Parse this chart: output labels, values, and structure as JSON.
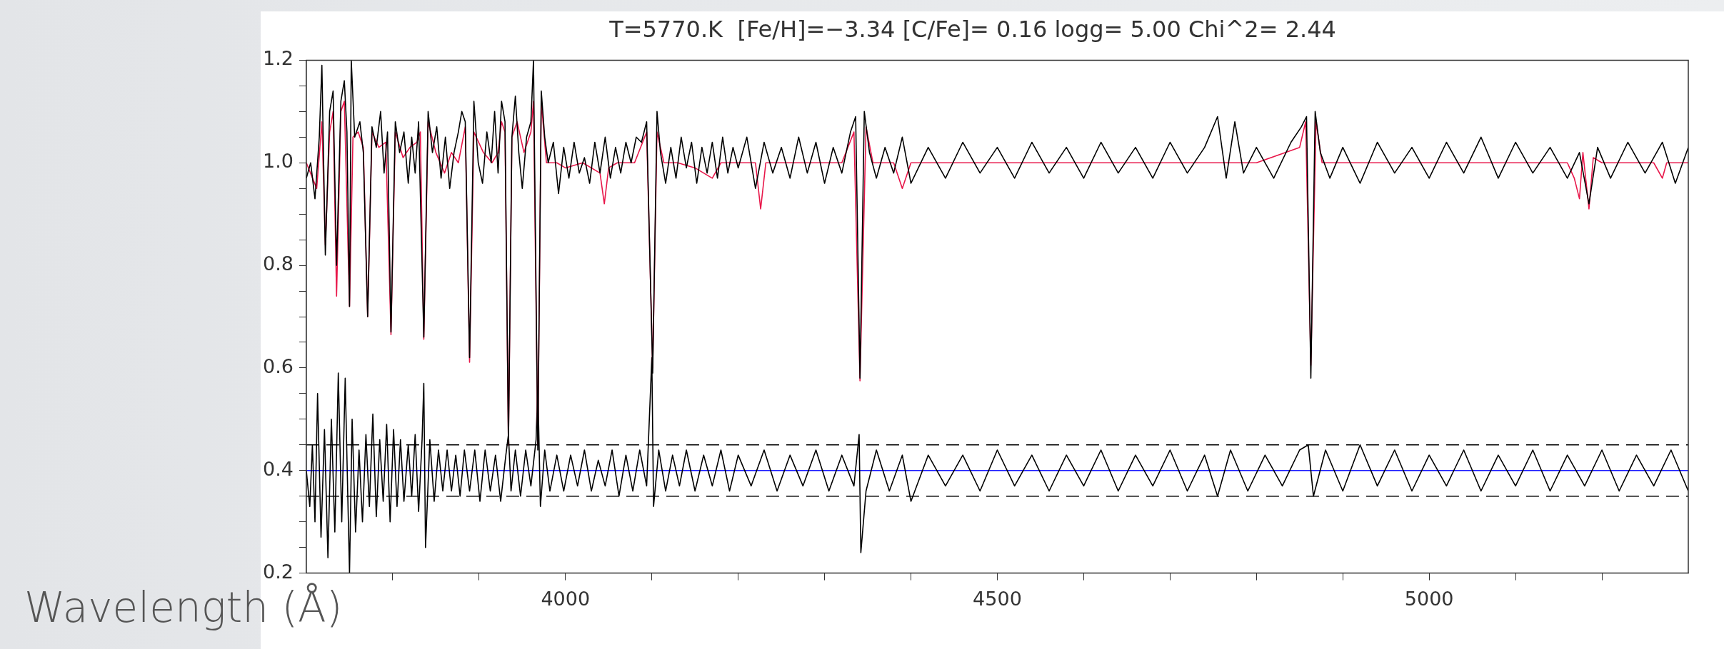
{
  "chart_data": {
    "type": "line",
    "title": "T=5770.K  [Fe/H]=−3.34 [C/Fe]= 0.16 logg= 5.00 Chi^2= 2.44",
    "xlabel": "Wavelength (Å)",
    "xlim": [
      3700,
      5300
    ],
    "xticks": [
      {
        "value": 3800,
        "label": null
      },
      {
        "value": 3900,
        "label": null
      },
      4000,
      {
        "value": 4100,
        "label": null
      },
      {
        "value": 4200,
        "label": null
      },
      {
        "value": 4300,
        "label": null
      },
      {
        "value": 4400,
        "label": null
      },
      4500,
      {
        "value": 4600,
        "label": null
      },
      {
        "value": 4700,
        "label": null
      },
      {
        "value": 4800,
        "label": null
      },
      {
        "value": 4900,
        "label": null
      },
      5000,
      {
        "value": 5100,
        "label": null
      },
      {
        "value": 5200,
        "label": null
      }
    ],
    "ylim": [
      0.2,
      1.2
    ],
    "yticks": [
      0.2,
      {
        "value": 0.25,
        "label": null
      },
      {
        "value": 0.3,
        "label": null
      },
      {
        "value": 0.35,
        "label": null
      },
      0.4,
      {
        "value": 0.45,
        "label": null
      },
      {
        "value": 0.5,
        "label": null
      },
      {
        "value": 0.55,
        "label": null
      },
      0.6,
      {
        "value": 0.65,
        "label": null
      },
      {
        "value": 0.7,
        "label": null
      },
      {
        "value": 0.75,
        "label": null
      },
      0.8,
      {
        "value": 0.85,
        "label": null
      },
      {
        "value": 0.9,
        "label": null
      },
      {
        "value": 0.95,
        "label": null
      },
      {
        "value": 1,
        "label": "1.0"
      },
      {
        "value": 1.05,
        "label": null
      },
      {
        "value": 1.1,
        "label": null
      },
      {
        "value": 1.15,
        "label": null
      },
      1.2
    ],
    "legend": false,
    "grid": false,
    "marker": "none",
    "ref_lines": [
      {
        "axis": "y",
        "value": 0.4,
        "color": "#1a1aff",
        "line_style": "solid"
      },
      {
        "axis": "y",
        "value": 0.45,
        "color": "#000000",
        "line_style": "dashed"
      },
      {
        "axis": "y",
        "value": 0.35,
        "color": "#000000",
        "line_style": "dashed"
      }
    ],
    "series": [
      {
        "color": "#000000",
        "x": [
          3700,
          3705,
          3710,
          3715,
          3718,
          3722,
          3727,
          3731,
          3735,
          3740,
          3744,
          3747,
          3750,
          3752,
          3756,
          3762,
          3766,
          3771,
          3776,
          3781,
          3786,
          3790,
          3794,
          3798,
          3803,
          3808,
          3813,
          3818,
          3822,
          3826,
          3830,
          3836,
          3841,
          3846,
          3851,
          3856,
          3861,
          3866,
          3871,
          3876,
          3880,
          3884,
          3889,
          3894,
          3899,
          3904,
          3909,
          3914,
          3918,
          3922,
          3926,
          3930,
          3934,
          3938,
          3942,
          3946,
          3950,
          3955,
          3960,
          3963,
          3968,
          3972,
          3976,
          3980,
          3986,
          3992,
          3998,
          4004,
          4010,
          4016,
          4022,
          4028,
          4034,
          4040,
          4046,
          4052,
          4058,
          4064,
          4070,
          4076,
          4082,
          4088,
          4094,
          4101,
          4106,
          4110,
          4116,
          4122,
          4128,
          4134,
          4140,
          4146,
          4152,
          4158,
          4164,
          4170,
          4176,
          4182,
          4188,
          4194,
          4200,
          4210,
          4220,
          4230,
          4240,
          4250,
          4260,
          4270,
          4280,
          4290,
          4300,
          4310,
          4320,
          4330,
          4336,
          4341,
          4346,
          4352,
          4360,
          4370,
          4380,
          4390,
          4400,
          4420,
          4440,
          4460,
          4480,
          4500,
          4520,
          4540,
          4560,
          4580,
          4600,
          4620,
          4640,
          4660,
          4680,
          4700,
          4720,
          4740,
          4755,
          4765,
          4775,
          4785,
          4800,
          4820,
          4840,
          4852,
          4858,
          4863,
          4868,
          4874,
          4885,
          4900,
          4920,
          4940,
          4960,
          4980,
          5000,
          5020,
          5040,
          5060,
          5080,
          5100,
          5120,
          5140,
          5160,
          5174,
          5185,
          5195,
          5210,
          5230,
          5250,
          5270,
          5285,
          5300
        ],
        "values": [
          0.97,
          1.0,
          0.93,
          1.05,
          1.19,
          0.82,
          1.1,
          1.14,
          0.8,
          1.12,
          1.16,
          1.06,
          0.72,
          1.2,
          1.05,
          1.08,
          1.02,
          0.7,
          1.07,
          1.03,
          1.1,
          0.98,
          1.06,
          0.67,
          1.08,
          1.02,
          1.06,
          0.96,
          1.05,
          0.98,
          1.08,
          0.66,
          1.1,
          1.02,
          1.07,
          0.97,
          1.05,
          0.95,
          1.02,
          1.06,
          1.1,
          1.08,
          0.62,
          1.12,
          1.0,
          0.96,
          1.06,
          1.0,
          1.1,
          0.98,
          1.12,
          1.08,
          0.45,
          1.05,
          1.13,
          1.02,
          0.95,
          1.05,
          1.08,
          1.2,
          0.44,
          1.14,
          1.05,
          1.0,
          1.04,
          0.94,
          1.03,
          0.97,
          1.04,
          0.98,
          1.01,
          0.96,
          1.04,
          0.98,
          1.05,
          0.97,
          1.03,
          0.98,
          1.04,
          1.0,
          1.05,
          1.04,
          1.08,
          0.59,
          1.1,
          1.02,
          0.96,
          1.03,
          0.97,
          1.05,
          0.99,
          1.04,
          0.96,
          1.03,
          0.98,
          1.04,
          0.97,
          1.05,
          0.98,
          1.03,
          0.99,
          1.05,
          0.95,
          1.04,
          0.98,
          1.03,
          0.97,
          1.05,
          0.98,
          1.04,
          0.96,
          1.03,
          0.98,
          1.06,
          1.09,
          0.58,
          1.1,
          1.02,
          0.97,
          1.03,
          0.98,
          1.05,
          0.96,
          1.03,
          0.97,
          1.04,
          0.98,
          1.03,
          0.97,
          1.04,
          0.98,
          1.03,
          0.97,
          1.04,
          0.98,
          1.03,
          0.97,
          1.04,
          0.98,
          1.03,
          1.09,
          0.97,
          1.08,
          0.98,
          1.03,
          0.97,
          1.04,
          1.07,
          1.09,
          0.58,
          1.1,
          1.02,
          0.97,
          1.03,
          0.96,
          1.04,
          0.98,
          1.03,
          0.97,
          1.04,
          0.98,
          1.05,
          0.97,
          1.04,
          0.98,
          1.03,
          0.97,
          1.02,
          0.92,
          1.03,
          0.97,
          1.04,
          0.98,
          1.04,
          0.96,
          1.03
        ]
      },
      {
        "color": "#e8174a",
        "x": [
          3700,
          3712,
          3718,
          3722,
          3727,
          3731,
          3735,
          3740,
          3744,
          3750,
          3754,
          3760,
          3766,
          3771,
          3776,
          3784,
          3792,
          3798,
          3803,
          3812,
          3820,
          3828,
          3832,
          3836,
          3841,
          3850,
          3860,
          3868,
          3876,
          3884,
          3889,
          3894,
          3905,
          3915,
          3922,
          3926,
          3930,
          3934,
          3938,
          3944,
          3952,
          3960,
          3963,
          3968,
          3972,
          3978,
          3990,
          4000,
          4020,
          4040,
          4045,
          4050,
          4060,
          4080,
          4094,
          4101,
          4106,
          4114,
          4130,
          4150,
          4170,
          4180,
          4200,
          4220,
          4226,
          4232,
          4260,
          4300,
          4320,
          4334,
          4341,
          4348,
          4356,
          4380,
          4390,
          4400,
          4450,
          4500,
          4600,
          4700,
          4800,
          4850,
          4857,
          4863,
          4869,
          4876,
          4900,
          5000,
          5100,
          5160,
          5168,
          5174,
          5178,
          5185,
          5190,
          5200,
          5260,
          5270,
          5275,
          5300
        ],
        "values": [
          1.0,
          0.95,
          1.08,
          0.84,
          1.06,
          1.1,
          0.74,
          1.1,
          1.12,
          0.72,
          1.05,
          1.06,
          1.03,
          0.7,
          1.06,
          1.03,
          1.04,
          0.665,
          1.06,
          1.01,
          1.03,
          1.04,
          1.06,
          0.656,
          1.08,
          1.02,
          0.98,
          1.02,
          1.0,
          1.07,
          0.611,
          1.06,
          1.02,
          1.0,
          1.02,
          1.08,
          1.06,
          0.45,
          1.05,
          1.08,
          1.02,
          1.06,
          1.12,
          0.45,
          1.12,
          1.0,
          1.0,
          0.99,
          1.0,
          0.98,
          0.92,
          0.99,
          1.0,
          1.0,
          1.06,
          0.6,
          1.06,
          1.0,
          1.0,
          0.99,
          0.97,
          1.0,
          1.0,
          1.0,
          0.91,
          1.0,
          1.0,
          1.0,
          1.0,
          1.06,
          0.575,
          1.07,
          1.0,
          1.0,
          0.95,
          1.0,
          1.0,
          1.0,
          1.0,
          1.0,
          1.0,
          1.03,
          1.08,
          0.605,
          1.08,
          1.0,
          1.0,
          1.0,
          1.0,
          1.0,
          0.97,
          0.93,
          1.02,
          0.91,
          1.01,
          1.0,
          1.0,
          0.97,
          1.0,
          1.0
        ]
      },
      {
        "color": "#000000",
        "x": [
          3700,
          3704,
          3707,
          3710,
          3713,
          3717,
          3721,
          3725,
          3729,
          3733,
          3737,
          3741,
          3745,
          3748,
          3750,
          3753,
          3757,
          3761,
          3765,
          3769,
          3773,
          3777,
          3781,
          3785,
          3789,
          3793,
          3797,
          3801,
          3805,
          3809,
          3813,
          3818,
          3822,
          3826,
          3830,
          3834,
          3836,
          3838,
          3843,
          3848,
          3853,
          3858,
          3863,
          3868,
          3873,
          3878,
          3883,
          3889,
          3895,
          3901,
          3907,
          3913,
          3919,
          3925,
          3931,
          3934,
          3937,
          3942,
          3948,
          3954,
          3960,
          3966,
          3968,
          3971,
          3976,
          3982,
          3990,
          3998,
          4006,
          4014,
          4022,
          4030,
          4038,
          4046,
          4054,
          4062,
          4070,
          4078,
          4086,
          4094,
          4100,
          4102,
          4108,
          4116,
          4124,
          4132,
          4140,
          4150,
          4160,
          4170,
          4180,
          4190,
          4200,
          4215,
          4230,
          4245,
          4260,
          4275,
          4290,
          4305,
          4320,
          4334,
          4340,
          4342,
          4348,
          4360,
          4375,
          4390,
          4400,
          4420,
          4440,
          4460,
          4480,
          4500,
          4520,
          4540,
          4560,
          4580,
          4600,
          4620,
          4640,
          4660,
          4680,
          4700,
          4720,
          4740,
          4755,
          4770,
          4790,
          4810,
          4830,
          4850,
          4860,
          4866,
          4880,
          4900,
          4920,
          4940,
          4960,
          4980,
          5000,
          5020,
          5040,
          5060,
          5080,
          5100,
          5120,
          5140,
          5160,
          5180,
          5200,
          5220,
          5240,
          5260,
          5280,
          5300
        ],
        "values": [
          0.4,
          0.33,
          0.45,
          0.3,
          0.55,
          0.27,
          0.48,
          0.23,
          0.5,
          0.28,
          0.59,
          0.3,
          0.58,
          0.35,
          0.2,
          0.5,
          0.28,
          0.44,
          0.3,
          0.47,
          0.33,
          0.51,
          0.31,
          0.46,
          0.34,
          0.49,
          0.3,
          0.48,
          0.33,
          0.46,
          0.34,
          0.45,
          0.35,
          0.47,
          0.32,
          0.46,
          0.57,
          0.25,
          0.46,
          0.34,
          0.44,
          0.36,
          0.44,
          0.36,
          0.43,
          0.35,
          0.44,
          0.36,
          0.44,
          0.34,
          0.44,
          0.36,
          0.43,
          0.34,
          0.43,
          0.47,
          0.36,
          0.44,
          0.35,
          0.44,
          0.37,
          0.46,
          0.565,
          0.33,
          0.44,
          0.36,
          0.43,
          0.36,
          0.43,
          0.37,
          0.44,
          0.36,
          0.42,
          0.37,
          0.44,
          0.35,
          0.43,
          0.36,
          0.44,
          0.37,
          0.62,
          0.33,
          0.44,
          0.36,
          0.43,
          0.37,
          0.44,
          0.36,
          0.43,
          0.37,
          0.44,
          0.36,
          0.43,
          0.37,
          0.44,
          0.36,
          0.43,
          0.37,
          0.44,
          0.36,
          0.43,
          0.37,
          0.47,
          0.24,
          0.36,
          0.44,
          0.36,
          0.43,
          0.34,
          0.43,
          0.37,
          0.43,
          0.36,
          0.44,
          0.37,
          0.43,
          0.36,
          0.43,
          0.37,
          0.44,
          0.36,
          0.43,
          0.37,
          0.44,
          0.36,
          0.43,
          0.35,
          0.44,
          0.36,
          0.43,
          0.37,
          0.44,
          0.45,
          0.35,
          0.44,
          0.36,
          0.45,
          0.37,
          0.44,
          0.36,
          0.43,
          0.37,
          0.44,
          0.36,
          0.43,
          0.37,
          0.44,
          0.36,
          0.43,
          0.37,
          0.44,
          0.36,
          0.43,
          0.37,
          0.44,
          0.36
        ]
      }
    ]
  }
}
